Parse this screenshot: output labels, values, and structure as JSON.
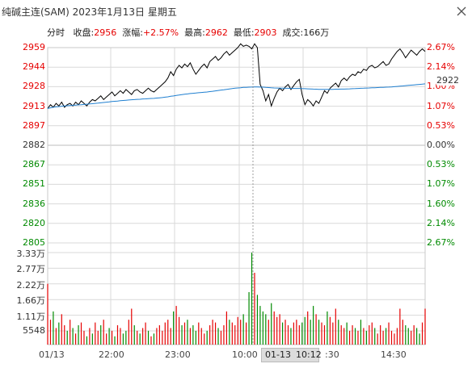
{
  "window": {
    "title": "纯碱主连(SAM) 2023年1月13日 星期五"
  },
  "info": {
    "mode": "分时",
    "close_label": "收盘:",
    "close_value": "2956",
    "change_label": "涨幅:",
    "change_value": "+2.57%",
    "high_label": "最高:",
    "high_value": "2962",
    "low_label": "最低:",
    "low_value": "2903",
    "volume_label": "成交:",
    "volume_value": "166万"
  },
  "price_axis": [
    "2959",
    "2944",
    "2928",
    "2913",
    "2897",
    "2882",
    "2867",
    "2851",
    "2836",
    "2820",
    "2805"
  ],
  "pct_axis": [
    "2.67%",
    "2.14%",
    "1.60%",
    "1.07%",
    "0.53%",
    "0.00%",
    "0.53%",
    "1.07%",
    "1.60%",
    "2.14%",
    "2.67%"
  ],
  "current_price_tag": "2922",
  "volume_axis": [
    "3.33万",
    "2.77万",
    "2.22万",
    "1.66万",
    "1.11万",
    "5548"
  ],
  "time_axis": [
    "01/13",
    "22:00",
    "23:00",
    "10:00",
    ":30",
    "14:30"
  ],
  "cursor": {
    "date": "01-13",
    "time": "10:12"
  },
  "colors": {
    "up": "#e60000",
    "down": "#008a00",
    "price_line": "#000000",
    "avg_line": "#1f7fd0",
    "grid": "#d9d9d9"
  },
  "chart_data": {
    "type": "line",
    "base_price": 2882,
    "ylim": [
      2805,
      2959
    ],
    "series": [
      {
        "values": [
          2911,
          2914,
          2912,
          2915,
          2913,
          2916,
          2912,
          2914,
          2915,
          2913,
          2916,
          2914,
          2917,
          2915,
          2913,
          2916,
          2918,
          2917,
          2919,
          2921,
          2918,
          2920,
          2922,
          2924,
          2921,
          2923,
          2925,
          2923,
          2926,
          2924,
          2922,
          2925,
          2926,
          2924,
          2923,
          2925,
          2927,
          2925,
          2924,
          2926,
          2928,
          2930,
          2932,
          2935,
          2940,
          2937,
          2942,
          2945,
          2943,
          2946,
          2944,
          2947,
          2942,
          2938,
          2941,
          2944,
          2946,
          2943,
          2948,
          2950,
          2952,
          2949,
          2951,
          2954,
          2956,
          2953,
          2955,
          2957,
          2959,
          2962,
          2960,
          2961,
          2960,
          2958,
          2962,
          2959,
          2930,
          2925,
          2917,
          2922,
          2913,
          2919,
          2924,
          2927,
          2925,
          2928,
          2930,
          2926,
          2929,
          2932,
          2934,
          2922,
          2914,
          2918,
          2916,
          2913,
          2917,
          2915,
          2920,
          2925,
          2923,
          2927,
          2929,
          2931,
          2928,
          2933,
          2935,
          2933,
          2936,
          2938,
          2937,
          2940,
          2939,
          2942,
          2941,
          2944,
          2945,
          2943,
          2944,
          2946,
          2948,
          2945,
          2946,
          2950,
          2953,
          2956,
          2958,
          2955,
          2951,
          2954,
          2957,
          2955,
          2953,
          2956,
          2958,
          2956
        ]
      },
      {
        "values": [
          2911,
          2911.5,
          2912,
          2912.3,
          2912.5,
          2912.8,
          2913,
          2913.2,
          2913.4,
          2913.5,
          2913.7,
          2913.9,
          2914,
          2914.2,
          2914.4,
          2914.6,
          2914.8,
          2915,
          2915.2,
          2915.5,
          2915.7,
          2916,
          2916.2,
          2916.5,
          2916.7,
          2916.9,
          2917.1,
          2917.3,
          2917.5,
          2917.7,
          2917.9,
          2918,
          2918.2,
          2918.3,
          2918.5,
          2918.6,
          2918.8,
          2918.9,
          2919,
          2919.2,
          2919.4,
          2919.6,
          2919.9,
          2920.2,
          2920.6,
          2920.9,
          2921.3,
          2921.6,
          2921.9,
          2922.2,
          2922.5,
          2922.8,
          2923,
          2923.2,
          2923.4,
          2923.6,
          2923.8,
          2924,
          2924.3,
          2924.6,
          2924.9,
          2925.2,
          2925.5,
          2925.8,
          2926.1,
          2926.4,
          2926.7,
          2927,
          2927.2,
          2927.4,
          2927.6,
          2927.7,
          2927.8,
          2927.9,
          2928,
          2928,
          2927.9,
          2927.8,
          2927.6,
          2927.5,
          2927.3,
          2927.2,
          2927.1,
          2927,
          2927,
          2926.9,
          2926.9,
          2926.8,
          2926.8,
          2926.8,
          2926.8,
          2926.7,
          2926.6,
          2926.5,
          2926.4,
          2926.3,
          2926.2,
          2926.1,
          2926.1,
          2926.1,
          2926.1,
          2926.1,
          2926.1,
          2926.2,
          2926.2,
          2926.3,
          2926.3,
          2926.4,
          2926.5,
          2926.6,
          2926.7,
          2926.8,
          2926.9,
          2927,
          2927.1,
          2927.2,
          2927.3,
          2927.4,
          2927.5,
          2927.6,
          2927.7,
          2927.8,
          2927.9,
          2928,
          2928.2,
          2928.4,
          2928.6,
          2928.8,
          2929,
          2929.2,
          2929.4,
          2929.6,
          2929.8,
          2930,
          2930.2,
          2930.4
        ]
      }
    ],
    "volume": {
      "ylim": [
        0,
        33300
      ],
      "values": [
        22000,
        9000,
        12000,
        6000,
        8000,
        11000,
        7000,
        5000,
        9000,
        6000,
        4000,
        7000,
        8000,
        5000,
        3000,
        6000,
        4000,
        8000,
        5000,
        7000,
        9000,
        4000,
        6000,
        5000,
        3000,
        7000,
        6000,
        4000,
        5000,
        9000,
        13000,
        7000,
        5000,
        4000,
        6000,
        8000,
        5000,
        3000,
        4000,
        6000,
        7000,
        5000,
        8000,
        9000,
        6000,
        12000,
        14000,
        10000,
        7000,
        8000,
        9000,
        6000,
        7000,
        5000,
        8000,
        6000,
        4000,
        5000,
        7000,
        9000,
        8000,
        6000,
        5000,
        7000,
        12000,
        9000,
        8000,
        7000,
        10000,
        9000,
        11000,
        8000,
        19000,
        33300,
        26000,
        18000,
        14000,
        12000,
        11000,
        9000,
        15000,
        12000,
        10000,
        11000,
        8000,
        9000,
        7000,
        6000,
        8000,
        9000,
        7000,
        8000,
        10000,
        12000,
        9000,
        14000,
        11000,
        9000,
        8000,
        7000,
        12000,
        10000,
        8000,
        13000,
        9000,
        7000,
        6000,
        8000,
        5000,
        7000,
        6000,
        5000,
        9000,
        6000,
        5000,
        7000,
        8000,
        6000,
        4000,
        7000,
        5000,
        6000,
        8000,
        5000,
        4000,
        6000,
        13000,
        9000,
        7000,
        6000,
        5000,
        7000,
        6000,
        4000,
        8000,
        13000
      ],
      "dir": [
        1,
        1,
        -1,
        1,
        -1,
        1,
        1,
        -1,
        1,
        -1,
        1,
        -1,
        1,
        1,
        -1,
        1,
        -1,
        1,
        1,
        -1,
        1,
        1,
        -1,
        1,
        -1,
        1,
        1,
        -1,
        -1,
        1,
        1,
        -1,
        1,
        -1,
        1,
        1,
        -1,
        1,
        -1,
        1,
        1,
        1,
        1,
        1,
        1,
        -1,
        1,
        1,
        -1,
        1,
        -1,
        1,
        -1,
        -1,
        1,
        1,
        1,
        -1,
        1,
        1,
        1,
        -1,
        1,
        1,
        1,
        -1,
        1,
        1,
        1,
        1,
        -1,
        1,
        -1,
        -1,
        1,
        -1,
        -1,
        -1,
        -1,
        1,
        -1,
        1,
        1,
        1,
        -1,
        1,
        1,
        -1,
        1,
        1,
        1,
        -1,
        -1,
        1,
        -1,
        -1,
        1,
        -1,
        1,
        1,
        -1,
        1,
        1,
        1,
        -1,
        1,
        1,
        -1,
        1,
        1,
        -1,
        1,
        -1,
        1,
        -1,
        1,
        1,
        -1,
        1,
        1,
        1,
        -1,
        1,
        1,
        1,
        1,
        1,
        1,
        -1,
        -1,
        1,
        1,
        -1,
        -1,
        1,
        1,
        -1
      ]
    }
  }
}
